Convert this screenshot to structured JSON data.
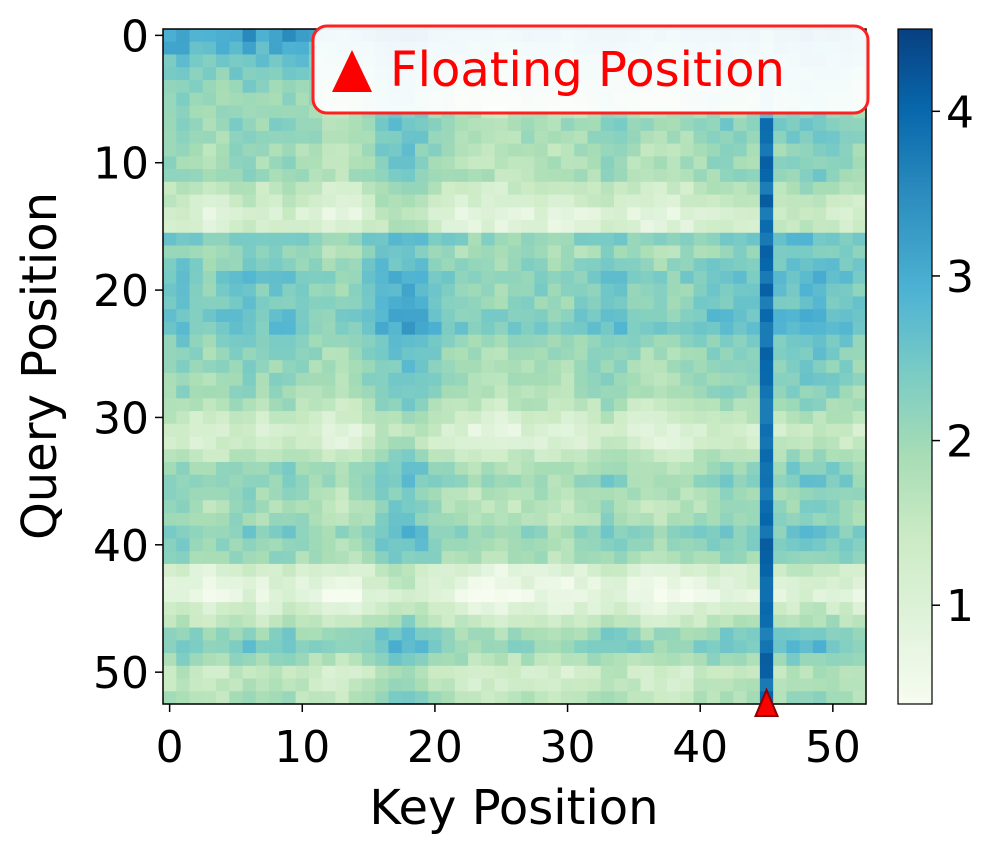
{
  "chart_data": {
    "type": "heatmap",
    "title": "",
    "xlabel": "Key Position",
    "ylabel": "Query Position",
    "n_rows": 53,
    "n_cols": 53,
    "xlim": [
      -0.5,
      52.5
    ],
    "ylim": [
      52.5,
      -0.5
    ],
    "xticks": [
      0,
      10,
      20,
      30,
      40,
      50
    ],
    "yticks": [
      0,
      10,
      20,
      30,
      40,
      50
    ],
    "colorbar": {
      "min": 0.4,
      "max": 4.5,
      "ticks": [
        1,
        2,
        3,
        4
      ]
    },
    "colormap": "GnBu",
    "floating_position": {
      "key": 45,
      "query": 52.5,
      "label": "Floating Position",
      "marker_color": "#ff0000",
      "marker_edge": "#8b0000"
    },
    "legend_placement": "top-right",
    "bright_column": {
      "key": 45,
      "mean_value": 3.9
    },
    "row_levels": [
      3.2,
      2.9,
      2.6,
      2.4,
      2.2,
      2.1,
      2.0,
      2.2,
      2.1,
      2.0,
      2.0,
      2.0,
      1.6,
      1.4,
      1.1,
      1.2,
      2.4,
      2.1,
      2.3,
      2.5,
      2.4,
      2.4,
      2.6,
      2.6,
      2.3,
      2.2,
      2.1,
      2.1,
      2.0,
      1.8,
      1.5,
      1.2,
      1.3,
      1.7,
      2.1,
      2.2,
      2.0,
      1.9,
      2.0,
      2.3,
      2.2,
      2.0,
      1.2,
      1.0,
      0.8,
      1.2,
      1.6,
      2.2,
      2.4,
      2.0,
      1.5,
      1.6,
      1.8
    ],
    "col_levels": [
      2.1,
      2.2,
      2.0,
      1.9,
      2.0,
      2.1,
      2.2,
      2.0,
      2.1,
      2.2,
      2.0,
      1.9,
      1.8,
      1.8,
      1.9,
      2.1,
      2.4,
      2.5,
      2.6,
      2.4,
      2.2,
      2.0,
      1.9,
      1.8,
      1.8,
      1.7,
      1.8,
      1.9,
      1.9,
      1.8,
      1.8,
      1.9,
      2.0,
      2.2,
      2.1,
      1.9,
      1.8,
      1.8,
      1.8,
      1.9,
      2.0,
      2.1,
      2.2,
      2.1,
      2.1,
      4.2,
      2.2,
      2.3,
      2.4,
      2.4,
      2.3,
      2.2,
      2.1
    ],
    "gradient_stops": [
      {
        "v": 0.4,
        "color": "#f7fcf0"
      },
      {
        "v": 0.9,
        "color": "#e0f3db"
      },
      {
        "v": 1.4,
        "color": "#ccebc5"
      },
      {
        "v": 1.9,
        "color": "#a8ddb5"
      },
      {
        "v": 2.4,
        "color": "#7bccc4"
      },
      {
        "v": 2.9,
        "color": "#4eb3d3"
      },
      {
        "v": 3.5,
        "color": "#2b8cbe"
      },
      {
        "v": 4.0,
        "color": "#0868ac"
      },
      {
        "v": 4.5,
        "color": "#084081"
      }
    ]
  }
}
